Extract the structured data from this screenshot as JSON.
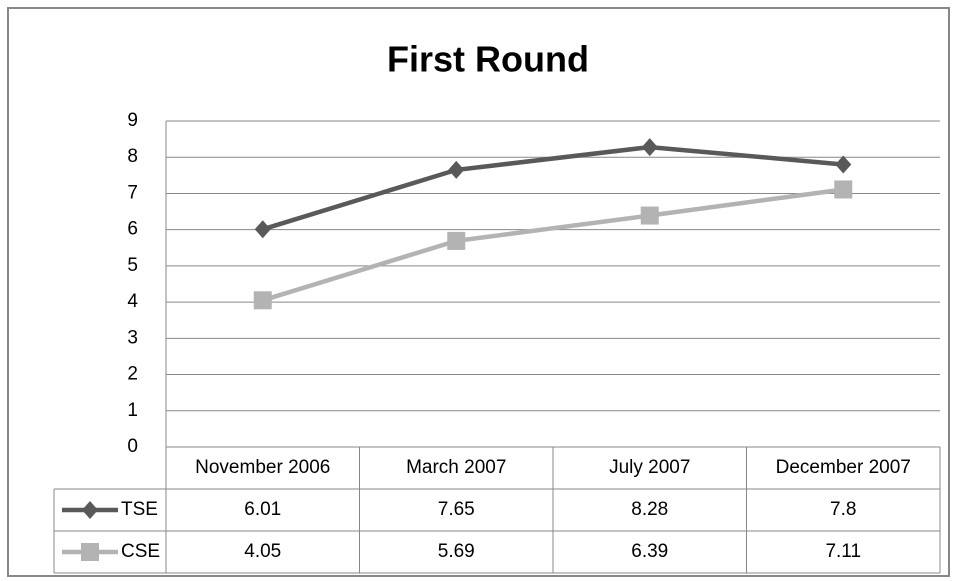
{
  "chart_data": {
    "type": "line",
    "title": "First Round",
    "categories": [
      "November 2006",
      "March 2007",
      "July 2007",
      "December 2007"
    ],
    "series": [
      {
        "name": "TSE",
        "color": "#595959",
        "marker": "diamond",
        "values": [
          6.01,
          7.65,
          8.28,
          7.8
        ]
      },
      {
        "name": "CSE",
        "color": "#b3b3b3",
        "marker": "square",
        "values": [
          4.05,
          5.69,
          6.39,
          7.11
        ]
      }
    ],
    "ylim": [
      0,
      9
    ],
    "yticks": [
      0,
      1,
      2,
      3,
      4,
      5,
      6,
      7,
      8,
      9
    ],
    "grid": true
  }
}
